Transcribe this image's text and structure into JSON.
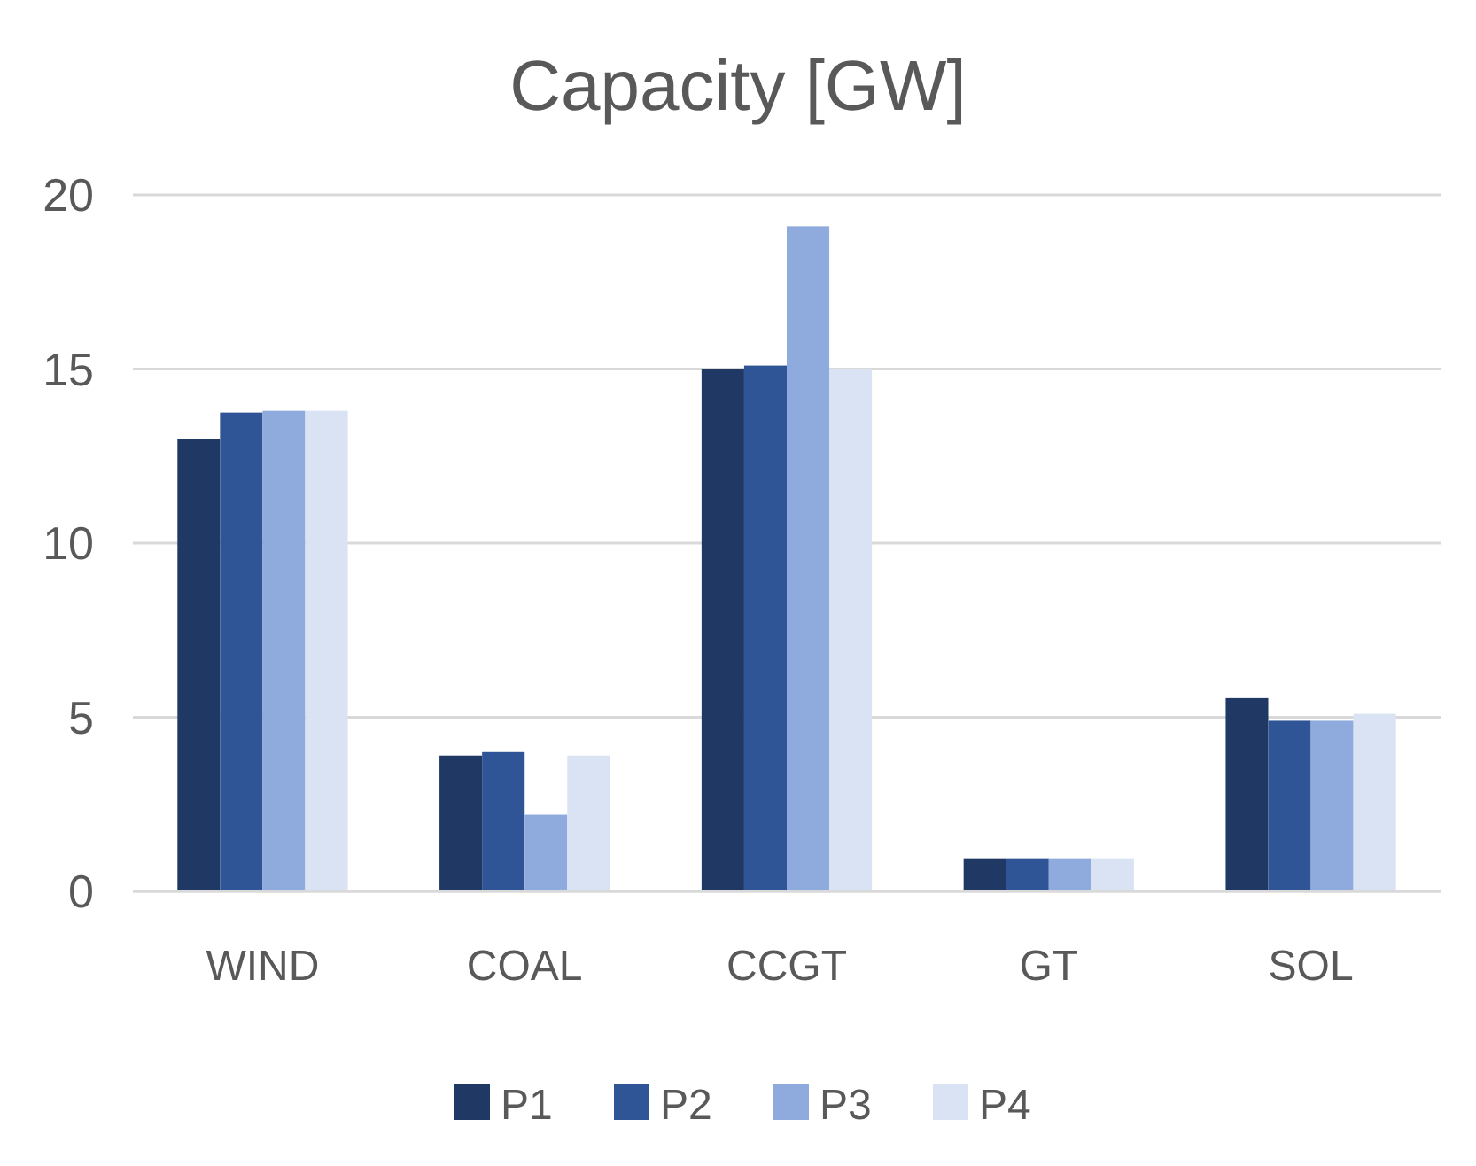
{
  "chart_data": {
    "type": "bar",
    "title": "Capacity [GW]",
    "categories": [
      "WIND",
      "COAL",
      "CCGT",
      "GT",
      "SOL"
    ],
    "series": [
      {
        "name": "P1",
        "color": "#203864",
        "values": [
          13.0,
          3.9,
          15.0,
          0.95,
          5.55
        ]
      },
      {
        "name": "P2",
        "color": "#2f5597",
        "values": [
          13.75,
          4.0,
          15.1,
          0.95,
          4.9
        ]
      },
      {
        "name": "P3",
        "color": "#8faadc",
        "values": [
          13.8,
          2.2,
          19.1,
          0.95,
          4.9
        ]
      },
      {
        "name": "P4",
        "color": "#dae3f3",
        "values": [
          13.8,
          3.9,
          15.0,
          0.95,
          5.1
        ]
      }
    ],
    "ylim": [
      0,
      20
    ],
    "yticks": [
      0,
      5,
      10,
      15,
      20
    ],
    "grid": "y",
    "legend": "bottom"
  }
}
